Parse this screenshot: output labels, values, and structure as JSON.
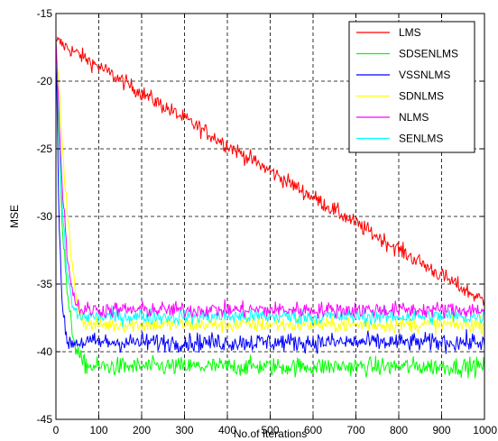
{
  "chart_data": {
    "type": "line",
    "title": "",
    "xlabel": "No.of Iterations",
    "ylabel": "MSE",
    "xlim": [
      0,
      1000
    ],
    "ylim": [
      -45,
      -15
    ],
    "xticks": [
      0,
      100,
      200,
      300,
      400,
      500,
      600,
      700,
      800,
      900,
      1000
    ],
    "yticks": [
      -45,
      -40,
      -35,
      -30,
      -25,
      -20,
      -15
    ],
    "xtick_labels": [
      "0",
      "100",
      "200",
      "300",
      "400",
      "500",
      "600",
      "700",
      "800",
      "900",
      "1000"
    ],
    "ytick_labels": [
      "-45",
      "-40",
      "-35",
      "-30",
      "-25",
      "-20",
      "-15"
    ],
    "grid": true,
    "grid_style": "dashed",
    "legend_position": "top-right",
    "series": [
      {
        "name": "LMS",
        "color": "#ff0000",
        "start": -17,
        "curve": [
          [
            0,
            -17
          ],
          [
            1000,
            -36.3
          ]
        ],
        "noise": 0.3
      },
      {
        "name": "SDSENLMS",
        "color": "#00ff00",
        "start": -17,
        "curve": [
          [
            0,
            -17
          ],
          [
            15,
            -31
          ],
          [
            30,
            -37
          ],
          [
            45,
            -39.5
          ],
          [
            60,
            -40.8
          ],
          [
            80,
            -41.1
          ],
          [
            1000,
            -41.1
          ]
        ],
        "noise": 0.35
      },
      {
        "name": "VSSNLMS",
        "color": "#0000ff",
        "start": -17,
        "curve": [
          [
            0,
            -17
          ],
          [
            8,
            -31
          ],
          [
            15,
            -36.5
          ],
          [
            22,
            -38.8
          ],
          [
            30,
            -39.3
          ],
          [
            1000,
            -39.3
          ]
        ],
        "noise": 0.35
      },
      {
        "name": "SDNLMS",
        "color": "#ffff00",
        "start": -17,
        "curve": [
          [
            0,
            -17
          ],
          [
            20,
            -27
          ],
          [
            35,
            -33
          ],
          [
            50,
            -36.5
          ],
          [
            65,
            -37.8
          ],
          [
            80,
            -38
          ],
          [
            1000,
            -38
          ]
        ],
        "noise": 0.3
      },
      {
        "name": "NLMS",
        "color": "#ff00ff",
        "start": -17,
        "curve": [
          [
            0,
            -17
          ],
          [
            15,
            -28
          ],
          [
            30,
            -34
          ],
          [
            45,
            -36.3
          ],
          [
            60,
            -36.9
          ],
          [
            1000,
            -36.9
          ]
        ],
        "noise": 0.3
      },
      {
        "name": "SENLMS",
        "color": "#00ffff",
        "start": -17,
        "curve": [
          [
            0,
            -17
          ],
          [
            12,
            -28
          ],
          [
            25,
            -34
          ],
          [
            40,
            -36.8
          ],
          [
            55,
            -37.4
          ],
          [
            1000,
            -37.4
          ]
        ],
        "noise": 0.3
      }
    ]
  }
}
